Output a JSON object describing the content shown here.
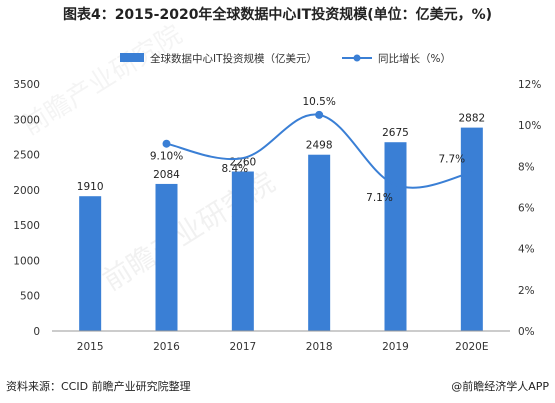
{
  "title": "图表4：2015-2020年全球数据中心IT投资规模(单位：亿美元，%)",
  "source": "资料来源：CCID 前瞻产业研究院整理",
  "credit": "@前瞻经济学人APP",
  "watermark": "前瞻产业研究院",
  "colors": {
    "bar": "#3a7fd5",
    "line": "#3a7fd5",
    "axis": "#999999",
    "grid": "#e6e6e6",
    "text": "#333333"
  },
  "chart_data": {
    "type": "bar",
    "categories": [
      "2015",
      "2016",
      "2017",
      "2018",
      "2019",
      "2020E"
    ],
    "series": [
      {
        "name": "全球数据中心IT投资规模（亿美元）",
        "type": "bar",
        "axis": "left",
        "values": [
          1910,
          2084,
          2260,
          2498,
          2675,
          2882
        ],
        "labels": [
          "1910",
          "2084",
          "2260",
          "2498",
          "2675",
          "2882"
        ]
      },
      {
        "name": "同比增长（%）",
        "type": "line",
        "axis": "right",
        "values": [
          null,
          9.1,
          8.4,
          10.5,
          7.1,
          7.7
        ],
        "labels": [
          "",
          "9.10%",
          "8.4%",
          "10.5%",
          "7.1%",
          "7.7%"
        ]
      }
    ],
    "ylim": [
      0,
      3500
    ],
    "yticks": [
      0,
      500,
      1000,
      1500,
      2000,
      2500,
      3000,
      3500
    ],
    "y2lim": [
      0,
      12
    ],
    "y2ticks": [
      "0%",
      "2%",
      "4%",
      "6%",
      "8%",
      "10%",
      "12%"
    ],
    "legend": "top-center",
    "grid": false
  }
}
